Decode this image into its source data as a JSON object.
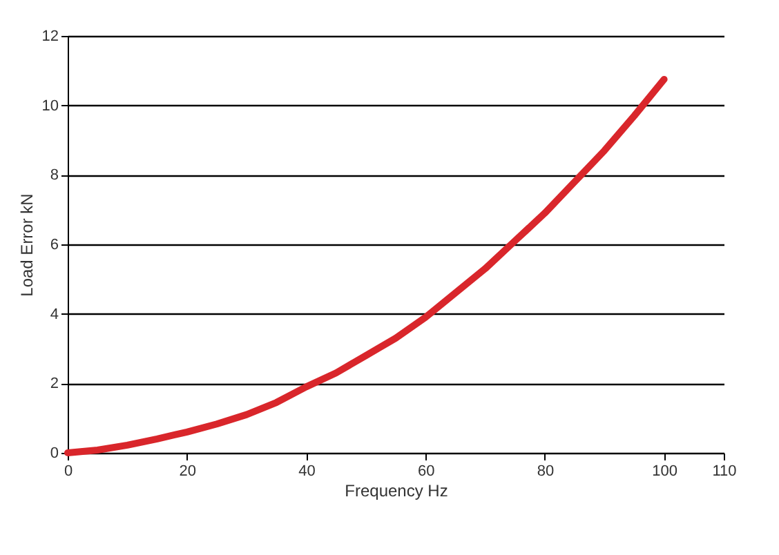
{
  "chart_data": {
    "type": "line",
    "xlabel": "Frequency Hz",
    "ylabel": "Load Error kN",
    "x": [
      0,
      5,
      10,
      15,
      20,
      25,
      30,
      35,
      40,
      45,
      50,
      55,
      60,
      65,
      70,
      75,
      80,
      85,
      90,
      95,
      100
    ],
    "series": [
      {
        "color": "#d9262b",
        "values": [
          0,
          0.08,
          0.22,
          0.4,
          0.6,
          0.83,
          1.1,
          1.45,
          1.9,
          2.3,
          2.8,
          3.3,
          3.9,
          4.6,
          5.3,
          6.1,
          6.9,
          7.8,
          8.7,
          9.7,
          10.75
        ]
      }
    ],
    "xlim": [
      0,
      110
    ],
    "xticks": [
      0,
      20,
      40,
      60,
      80,
      100,
      110
    ],
    "ylim": [
      0,
      12
    ],
    "yticks": [
      0,
      2,
      4,
      6,
      8,
      10,
      12
    ],
    "grid": "y",
    "marker": "none",
    "line_style": "solid"
  }
}
